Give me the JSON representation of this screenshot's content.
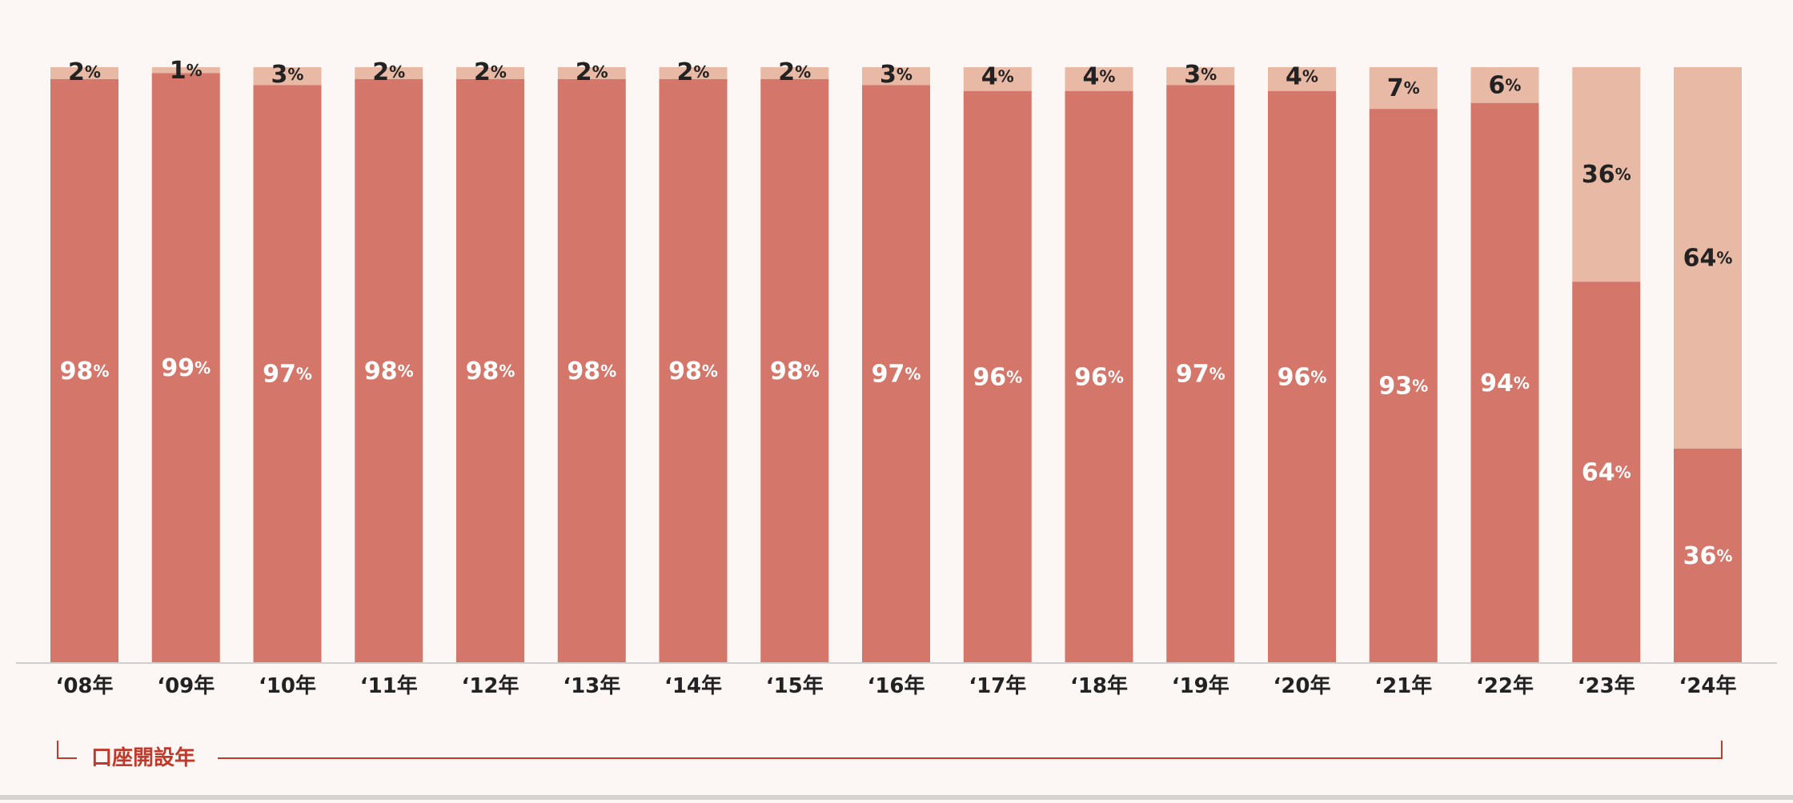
{
  "chart_data": {
    "type": "bar",
    "stacked": true,
    "percent_stacked": true,
    "categories": [
      "‘08年",
      "‘09年",
      "‘10年",
      "‘11年",
      "‘12年",
      "‘13年",
      "‘14年",
      "‘15年",
      "‘16年",
      "‘17年",
      "‘18年",
      "‘19年",
      "‘20年",
      "‘21年",
      "‘22年",
      "‘23年",
      "‘24年"
    ],
    "series": [
      {
        "values": [
          98,
          99,
          97,
          98,
          98,
          98,
          98,
          98,
          97,
          96,
          96,
          97,
          96,
          93,
          94,
          64,
          36
        ],
        "color": "#d4766a",
        "label_color": "#ffffff"
      },
      {
        "values": [
          2,
          1,
          3,
          2,
          2,
          2,
          2,
          2,
          3,
          4,
          4,
          3,
          4,
          7,
          6,
          36,
          64
        ],
        "color": "#e8b9a5",
        "label_color": "#222222"
      }
    ],
    "value_suffix": "%",
    "ylim": [
      0,
      100
    ],
    "xlabel": "口座開設年",
    "grid": false,
    "legend": "none"
  },
  "colors": {
    "background": "#fcf7f4",
    "axis": "#cfcfcf",
    "bracket": "#c0392b",
    "xlabel": "#c0392b",
    "tick": "#222222"
  }
}
